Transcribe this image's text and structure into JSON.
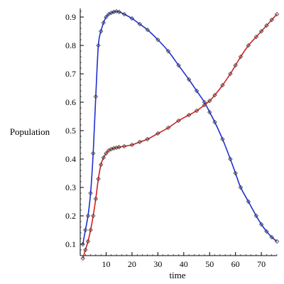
{
  "chart_data": {
    "type": "line",
    "title": "",
    "xlabel": "time",
    "ylabel": "Population",
    "xlim": [
      0,
      76
    ],
    "ylim": [
      0.06,
      0.93
    ],
    "grid": false,
    "x_ticks": [
      10,
      20,
      30,
      40,
      50,
      60,
      70
    ],
    "y_ticks": [
      0.1,
      0.2,
      0.3,
      0.4,
      0.5,
      0.6,
      0.7,
      0.8,
      0.9
    ],
    "colors": {
      "series_a": "#1f2fd0",
      "series_b": "#d01f1f",
      "markers": "#333333"
    },
    "series": [
      {
        "line_color": "#1f2fd0",
        "marker": "diamond",
        "x": [
          1,
          2,
          3,
          4,
          5,
          6,
          7,
          8,
          9,
          10,
          11,
          12,
          13,
          14,
          15,
          17,
          20,
          23,
          26,
          30,
          34,
          38,
          42,
          45,
          48,
          50,
          52,
          55,
          58,
          60,
          62,
          65,
          68,
          70,
          72,
          74,
          76
        ],
        "values": [
          0.1,
          0.15,
          0.2,
          0.28,
          0.42,
          0.62,
          0.8,
          0.85,
          0.88,
          0.9,
          0.91,
          0.915,
          0.918,
          0.92,
          0.918,
          0.91,
          0.895,
          0.875,
          0.855,
          0.82,
          0.78,
          0.73,
          0.68,
          0.64,
          0.6,
          0.565,
          0.53,
          0.47,
          0.4,
          0.35,
          0.3,
          0.25,
          0.2,
          0.17,
          0.145,
          0.125,
          0.11
        ]
      },
      {
        "line_color": "#d01f1f",
        "marker": "diamond",
        "x": [
          1,
          2,
          3,
          4,
          5,
          6,
          7,
          8,
          9,
          10,
          11,
          12,
          13,
          14,
          15,
          17,
          20,
          23,
          26,
          30,
          34,
          38,
          42,
          45,
          48,
          50,
          52,
          55,
          58,
          60,
          62,
          65,
          68,
          70,
          72,
          74,
          76
        ],
        "values": [
          0.05,
          0.08,
          0.11,
          0.15,
          0.2,
          0.26,
          0.33,
          0.38,
          0.405,
          0.42,
          0.43,
          0.435,
          0.438,
          0.44,
          0.442,
          0.445,
          0.45,
          0.46,
          0.47,
          0.49,
          0.51,
          0.535,
          0.555,
          0.57,
          0.59,
          0.605,
          0.625,
          0.66,
          0.7,
          0.73,
          0.76,
          0.8,
          0.83,
          0.85,
          0.87,
          0.89,
          0.91
        ]
      }
    ]
  }
}
